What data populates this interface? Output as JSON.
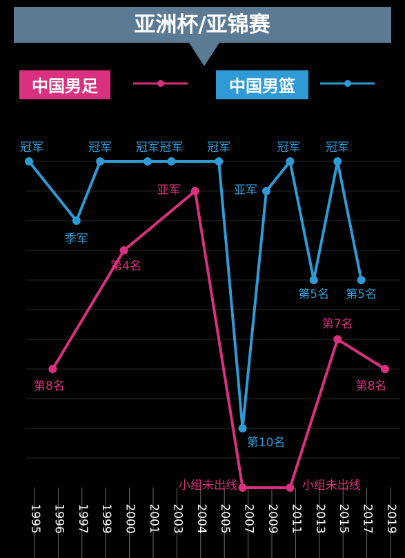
{
  "chart_data": {
    "type": "line",
    "title": "亚洲杯/亚锦赛",
    "x": [
      "1995",
      "1996",
      "1997",
      "1999",
      "2000",
      "2001",
      "2003",
      "2004",
      "2005",
      "2007",
      "2009",
      "2011",
      "2013",
      "2015",
      "2017",
      "2019"
    ],
    "rank_levels": [
      1,
      2,
      3,
      4,
      5,
      6,
      7,
      8,
      9,
      10,
      11
    ],
    "grid": "horizontal",
    "legend_position": "top",
    "series": [
      {
        "name": "中国男足",
        "color": "#d9317f",
        "points": [
          {
            "x": "1996",
            "rank": 8,
            "label": "第8名"
          },
          {
            "x": "2000",
            "rank": 4,
            "label": "第4名"
          },
          {
            "x": "2004",
            "rank": 2,
            "label": "亚军"
          },
          {
            "x": "2007",
            "rank": 12,
            "label": "小组未出线"
          },
          {
            "x": "2011",
            "rank": 12,
            "label": "小组未出线"
          },
          {
            "x": "2015",
            "rank": 7,
            "label": "第7名"
          },
          {
            "x": "2019",
            "rank": 8,
            "label": "第8名"
          }
        ]
      },
      {
        "name": "中国男篮",
        "color": "#2f9bd6",
        "points": [
          {
            "x": "1995",
            "rank": 1,
            "label": "冠军"
          },
          {
            "x": "1997",
            "rank": 3,
            "label": "季军"
          },
          {
            "x": "1999",
            "rank": 1,
            "label": "冠军"
          },
          {
            "x": "2001",
            "rank": 1,
            "label": "冠军"
          },
          {
            "x": "2003",
            "rank": 1,
            "label": "冠军"
          },
          {
            "x": "2005",
            "rank": 1,
            "label": "冠军"
          },
          {
            "x": "2007",
            "rank": 10,
            "label": "第10名"
          },
          {
            "x": "2009",
            "rank": 2,
            "label": "亚军"
          },
          {
            "x": "2011",
            "rank": 1,
            "label": "冠军"
          },
          {
            "x": "2013",
            "rank": 5,
            "label": "第5名"
          },
          {
            "x": "2015",
            "rank": 1,
            "label": "冠军"
          },
          {
            "x": "2017",
            "rank": 5,
            "label": "第5名"
          }
        ]
      }
    ]
  }
}
